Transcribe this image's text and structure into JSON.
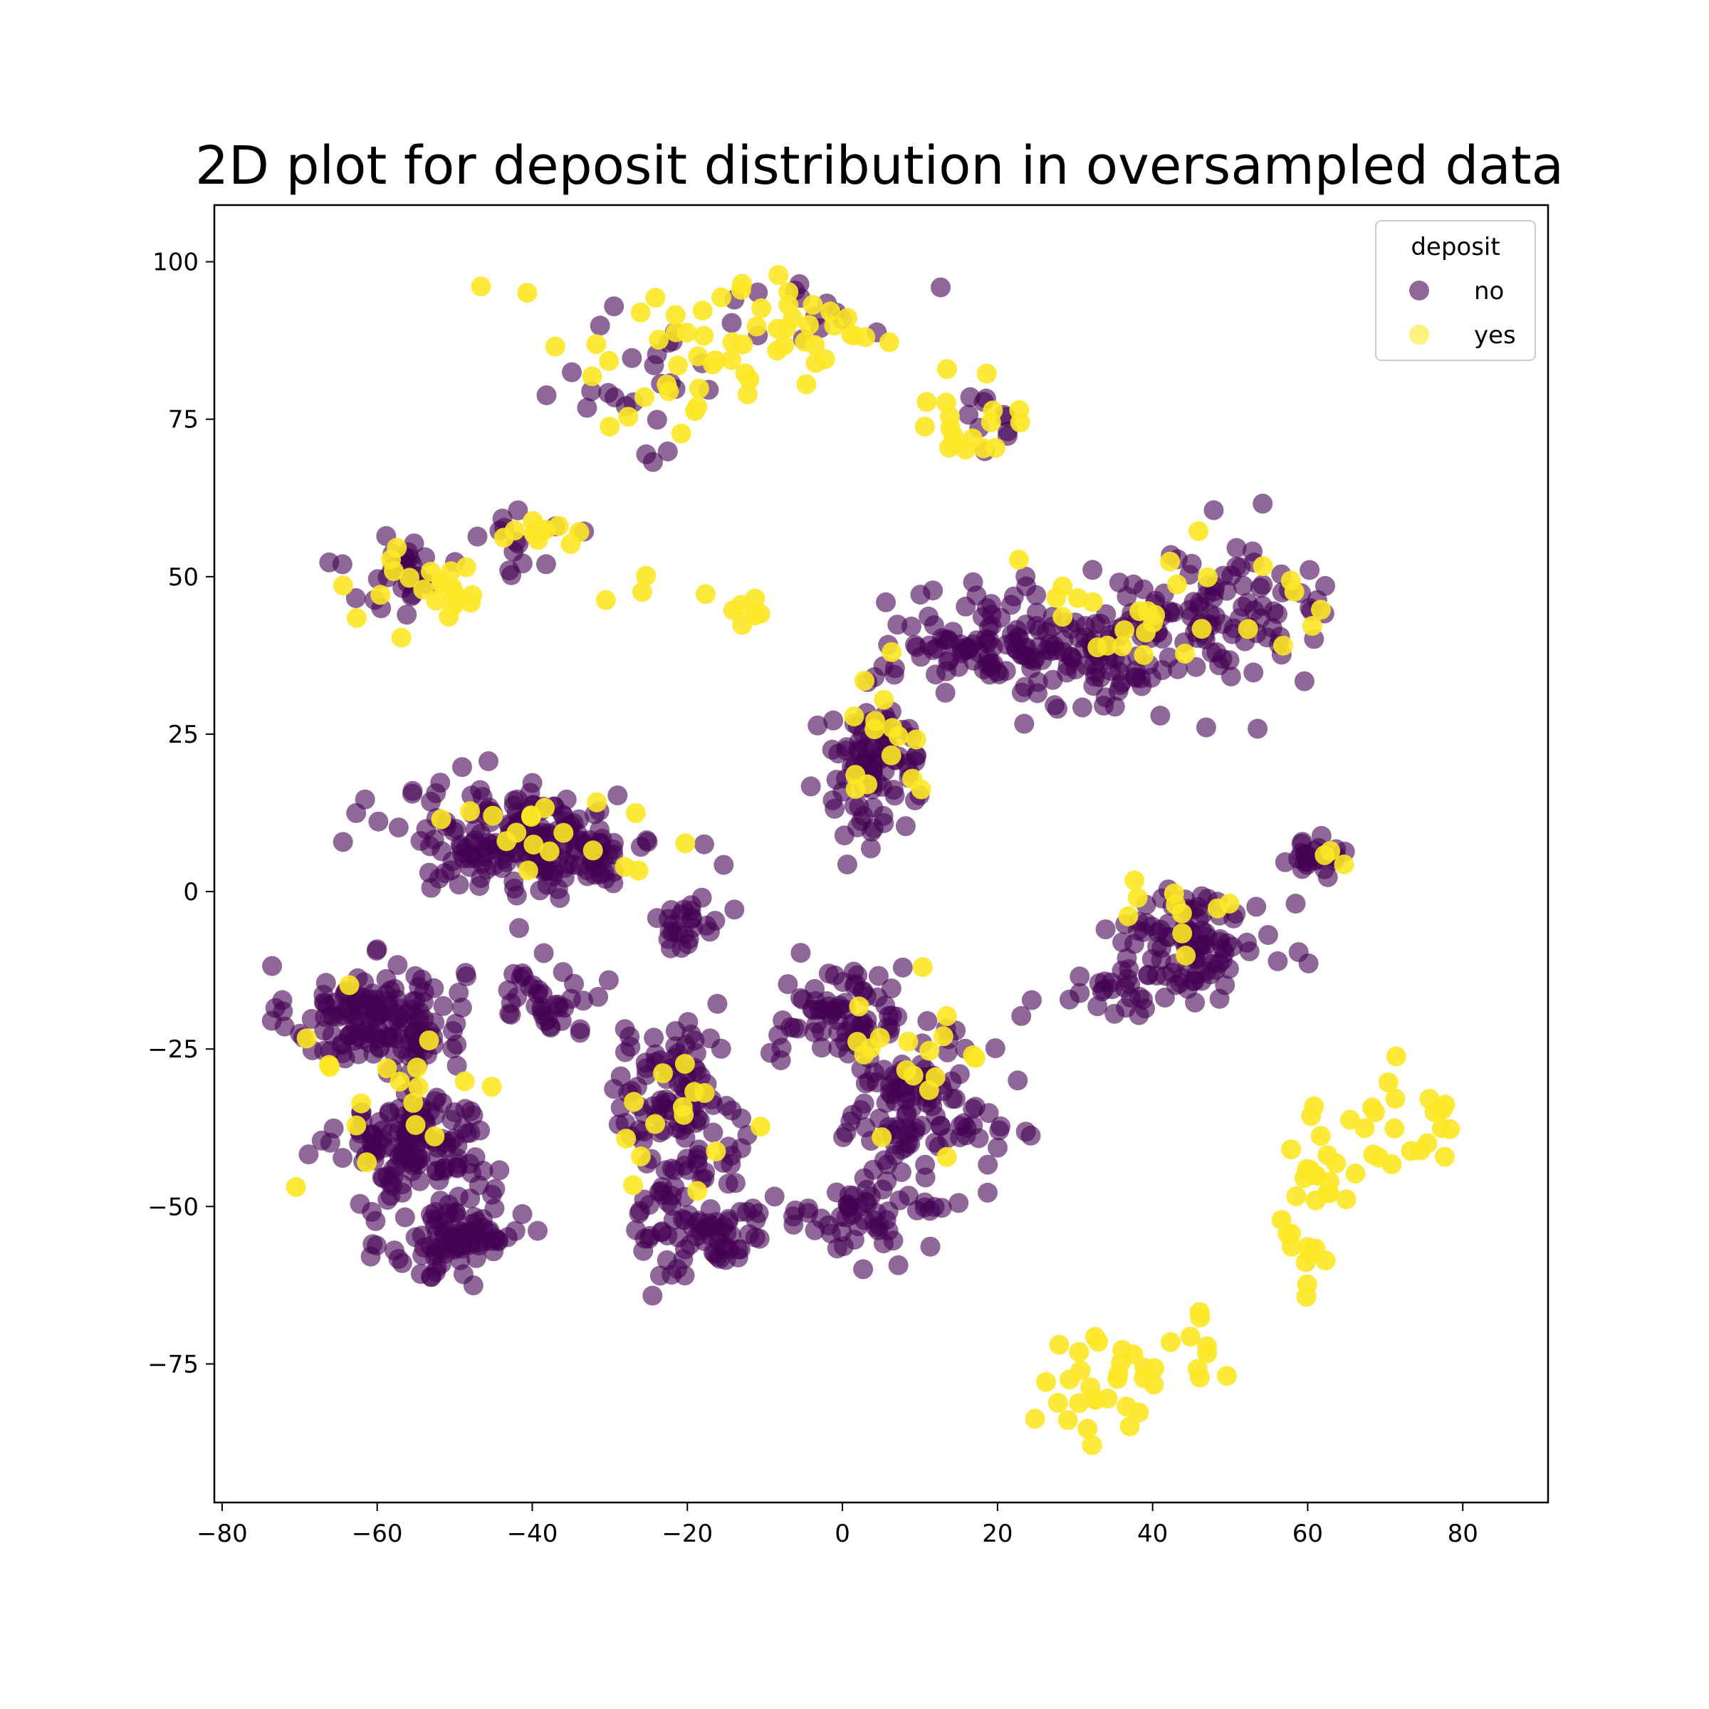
{
  "chart_data": {
    "type": "scatter",
    "title": "2D plot for deposit distribution in oversampled data",
    "xlabel": "",
    "ylabel": "",
    "xlim": [
      -81,
      91
    ],
    "ylim": [
      -97,
      109
    ],
    "xticks": [
      -80,
      -60,
      -40,
      -20,
      0,
      20,
      40,
      60,
      80
    ],
    "yticks": [
      -75,
      -50,
      -25,
      0,
      25,
      50,
      75,
      100
    ],
    "grid": false,
    "legend": {
      "title": "deposit",
      "placement": "top-right"
    },
    "colors": {
      "no": "#440154",
      "yes": "#fde725"
    },
    "series": [
      {
        "name": "no",
        "clusters": [
          {
            "center": [
              -60,
              -20
            ],
            "spread": [
              8,
              6
            ],
            "count": 150
          },
          {
            "center": [
              -55,
              -40
            ],
            "spread": [
              7,
              6
            ],
            "count": 130
          },
          {
            "center": [
              -50,
              -55
            ],
            "spread": [
              6,
              5
            ],
            "count": 90
          },
          {
            "center": [
              -40,
              8
            ],
            "spread": [
              12,
              6
            ],
            "count": 200
          },
          {
            "center": [
              -20,
              -5
            ],
            "spread": [
              3,
              3
            ],
            "count": 25
          },
          {
            "center": [
              -22,
              -32
            ],
            "spread": [
              6,
              8
            ],
            "count": 90
          },
          {
            "center": [
              -18,
              -52
            ],
            "spread": [
              6,
              7
            ],
            "count": 90
          },
          {
            "center": [
              -38,
              -17
            ],
            "spread": [
              5,
              4
            ],
            "count": 35
          },
          {
            "center": [
              4,
              20
            ],
            "spread": [
              5,
              8
            ],
            "count": 90
          },
          {
            "center": [
              0,
              -20
            ],
            "spread": [
              6,
              6
            ],
            "count": 70
          },
          {
            "center": [
              10,
              -35
            ],
            "spread": [
              7,
              8
            ],
            "count": 110
          },
          {
            "center": [
              3,
              -52
            ],
            "spread": [
              6,
              5
            ],
            "count": 50
          },
          {
            "center": [
              18,
              40
            ],
            "spread": [
              8,
              5
            ],
            "count": 90
          },
          {
            "center": [
              33,
              38
            ],
            "spread": [
              8,
              8
            ],
            "count": 90
          },
          {
            "center": [
              50,
              43
            ],
            "spread": [
              9,
              8
            ],
            "count": 90
          },
          {
            "center": [
              45,
              -8
            ],
            "spread": [
              8,
              6
            ],
            "count": 100
          },
          {
            "center": [
              36,
              -16
            ],
            "spread": [
              4,
              2
            ],
            "count": 20
          },
          {
            "center": [
              60,
              5
            ],
            "spread": [
              3,
              2
            ],
            "count": 25
          },
          {
            "center": [
              -57,
              50
            ],
            "spread": [
              5,
              5
            ],
            "count": 30
          },
          {
            "center": [
              -42,
              56
            ],
            "spread": [
              5,
              4
            ],
            "count": 15
          },
          {
            "center": [
              -25,
              82
            ],
            "spread": [
              7,
              10
            ],
            "count": 25
          },
          {
            "center": [
              -5,
              92
            ],
            "spread": [
              8,
              4
            ],
            "count": 15
          },
          {
            "center": [
              18,
              75
            ],
            "spread": [
              4,
              4
            ],
            "count": 10
          }
        ]
      },
      {
        "name": "yes",
        "clusters": [
          {
            "center": [
              -20,
              85
            ],
            "spread": [
              14,
              10
            ],
            "count": 40
          },
          {
            "center": [
              -5,
              90
            ],
            "spread": [
              6,
              6
            ],
            "count": 20
          },
          {
            "center": [
              16,
              74
            ],
            "spread": [
              6,
              5
            ],
            "count": 18
          },
          {
            "center": [
              -55,
              48
            ],
            "spread": [
              8,
              5
            ],
            "count": 22
          },
          {
            "center": [
              -38,
              57
            ],
            "spread": [
              6,
              3
            ],
            "count": 12
          },
          {
            "center": [
              -15,
              45
            ],
            "spread": [
              12,
              4
            ],
            "count": 10
          },
          {
            "center": [
              40,
              45
            ],
            "spread": [
              15,
              10
            ],
            "count": 30
          },
          {
            "center": [
              -40,
              10
            ],
            "spread": [
              12,
              6
            ],
            "count": 18
          },
          {
            "center": [
              5,
              22
            ],
            "spread": [
              6,
              8
            ],
            "count": 14
          },
          {
            "center": [
              -58,
              -30
            ],
            "spread": [
              9,
              15
            ],
            "count": 18
          },
          {
            "center": [
              -20,
              -40
            ],
            "spread": [
              7,
              10
            ],
            "count": 14
          },
          {
            "center": [
              8,
              -30
            ],
            "spread": [
              8,
              12
            ],
            "count": 18
          },
          {
            "center": [
              45,
              -5
            ],
            "spread": [
              8,
              6
            ],
            "count": 10
          },
          {
            "center": [
              60,
              -50
            ],
            "spread": [
              4,
              12
            ],
            "count": 25
          },
          {
            "center": [
              72,
              -38
            ],
            "spread": [
              7,
              8
            ],
            "count": 25
          },
          {
            "center": [
              33,
              -78
            ],
            "spread": [
              7,
              7
            ],
            "count": 30
          },
          {
            "center": [
              44,
              -72
            ],
            "spread": [
              3,
              6
            ],
            "count": 8
          },
          {
            "center": [
              62,
              6
            ],
            "spread": [
              2,
              2
            ],
            "count": 3
          }
        ]
      }
    ]
  }
}
